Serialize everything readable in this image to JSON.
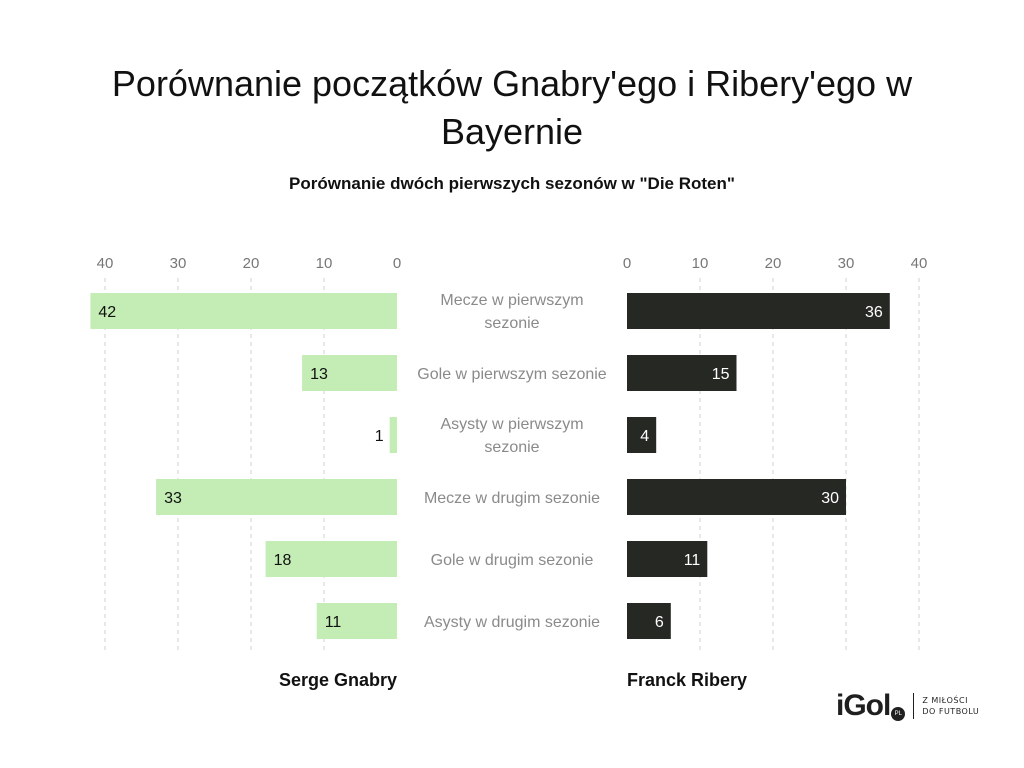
{
  "header": {
    "title": "Porównanie początków Gnabry'ego i Ribery'ego w Bayernie",
    "subtitle": "Porównanie dwóch pierwszych sezonów w \"Die Roten\""
  },
  "chart_data": {
    "type": "bar",
    "orientation": "horizontal-butterfly",
    "categories": [
      "Mecze w pierwszym sezonie",
      "Gole w pierwszym sezonie",
      "Asysty w pierwszym sezonie",
      "Mecze w drugim sezonie",
      "Gole w drugim sezonie",
      "Asysty w drugim sezonie"
    ],
    "series": [
      {
        "name": "Serge Gnabry",
        "values": [
          42,
          13,
          1,
          33,
          18,
          11
        ],
        "color": "#c3edb4",
        "side": "left"
      },
      {
        "name": "Franck Ribery",
        "values": [
          36,
          15,
          4,
          30,
          11,
          6
        ],
        "color": "#262823",
        "side": "right"
      }
    ],
    "ticks": [
      0,
      10,
      20,
      30,
      40
    ],
    "xlim": [
      0,
      42
    ],
    "grid": true,
    "legend": "bottom"
  },
  "logo": {
    "word": "iGol",
    "badge": "PL",
    "tagline_1": "Z MIŁOŚCI",
    "tagline_2": "DO FUTBOLU"
  }
}
